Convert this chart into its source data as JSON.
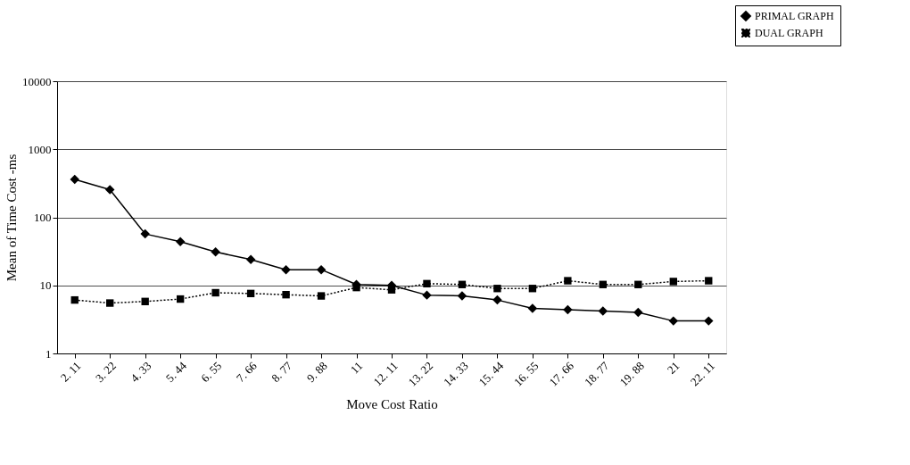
{
  "chart_data": {
    "type": "line",
    "xlabel": "Move Cost Ratio",
    "ylabel": "Mean of Time Cost -ms",
    "categories": [
      "2. 11",
      "3. 22",
      "4. 33",
      "5. 44",
      "6. 55",
      "7. 66",
      "8. 77",
      "9. 88",
      "11",
      "12. 11",
      "13. 22",
      "14. 33",
      "15. 44",
      "16. 55",
      "17. 66",
      "18. 77",
      "19. 88",
      "21",
      "22. 11"
    ],
    "series": [
      {
        "name": "PRIMAL GRAPH",
        "color": "#000000",
        "marker": "diamond",
        "line_style": "solid",
        "values": [
          360,
          255,
          57,
          44,
          31,
          24,
          17,
          17,
          10.3,
          10,
          7.2,
          7,
          6.1,
          4.6,
          4.4,
          4.2,
          4.0,
          3,
          3
        ]
      },
      {
        "name": "DUAL GRAPH",
        "color": "#000000",
        "marker": "square",
        "line_style": "dotted",
        "values": [
          6.1,
          5.5,
          5.8,
          6.3,
          7.8,
          7.6,
          7.3,
          7,
          9.3,
          8.6,
          10.6,
          10.3,
          9,
          9,
          11.7,
          10.3,
          10.3,
          11.4,
          11.7
        ]
      }
    ],
    "log": "y",
    "ylim": [
      1,
      10000
    ],
    "yticks": [
      1,
      10,
      100,
      1000,
      10000
    ],
    "grid": "y",
    "legend": "top right"
  }
}
